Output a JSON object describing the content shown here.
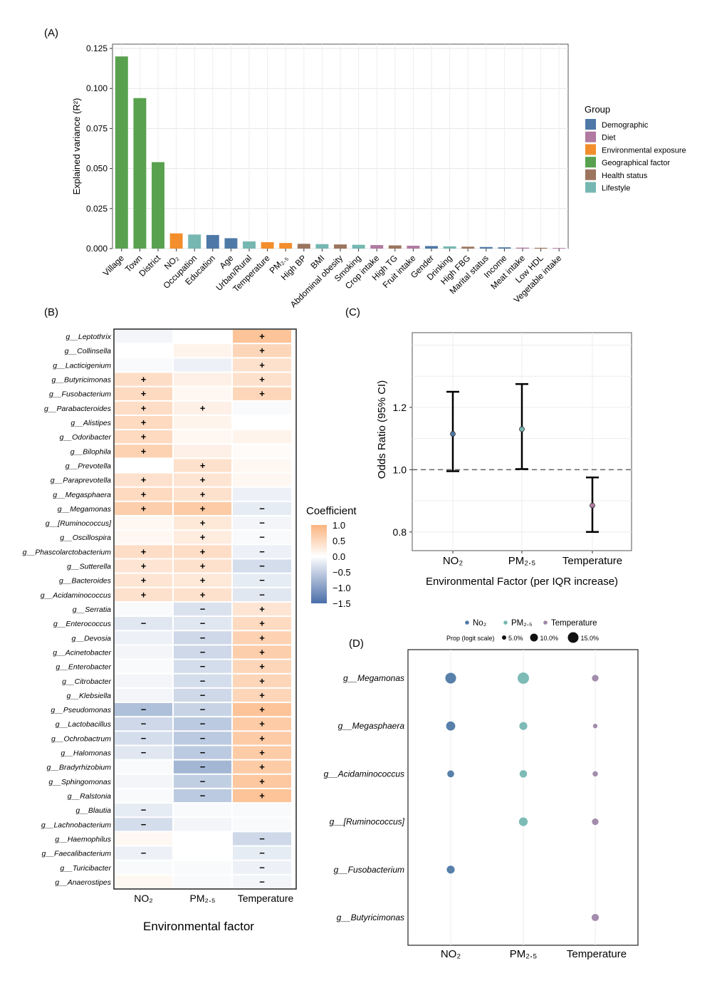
{
  "chart_data": [
    {
      "panel": "(A)",
      "type": "bar",
      "ylabel": "Explained variance (R²)",
      "ylim": [
        0,
        0.125
      ],
      "yticks": [
        "0.000",
        "0.025",
        "0.050",
        "0.075",
        "0.100",
        "0.125"
      ],
      "categories": [
        "Village",
        "Town",
        "District",
        "NO₂",
        "Occupation",
        "Education",
        "Age",
        "Urban/Rural",
        "Temperature",
        "PM₂.₅",
        "High BP",
        "BMI",
        "Abdominal obesity",
        "Smoking",
        "Crop intake",
        "High TG",
        "Fruit intake",
        "Gender",
        "Drinking",
        "High FBG",
        "Marital status",
        "Income",
        "Meat intake",
        "Low HDL",
        "Vegetable intake"
      ],
      "values": [
        0.12,
        0.094,
        0.054,
        0.0095,
        0.0088,
        0.0085,
        0.0065,
        0.0045,
        0.004,
        0.0035,
        0.003,
        0.0028,
        0.0026,
        0.0024,
        0.0022,
        0.002,
        0.0018,
        0.0016,
        0.0014,
        0.0012,
        0.001,
        0.0008,
        0.0006,
        0.0005,
        0.0004
      ],
      "groups": [
        "Geographical factor",
        "Geographical factor",
        "Geographical factor",
        "Environmental exposure",
        "Lifestyle",
        "Demographic",
        "Demographic",
        "Lifestyle",
        "Environmental exposure",
        "Environmental exposure",
        "Health status",
        "Lifestyle",
        "Health status",
        "Lifestyle",
        "Diet",
        "Health status",
        "Diet",
        "Demographic",
        "Lifestyle",
        "Health status",
        "Demographic",
        "Demographic",
        "Diet",
        "Health status",
        "Diet"
      ],
      "legend_title": "Group",
      "legend": [
        {
          "name": "Demographic",
          "color": "#4E79A7"
        },
        {
          "name": "Diet",
          "color": "#B07AA1"
        },
        {
          "name": "Environmental exposure",
          "color": "#F28E2B"
        },
        {
          "name": "Geographical factor",
          "color": "#59A14F"
        },
        {
          "name": "Health status",
          "color": "#9C755F"
        },
        {
          "name": "Lifestyle",
          "color": "#76B7B2"
        }
      ],
      "grid": true
    },
    {
      "panel": "(B)",
      "type": "heatmap",
      "xlabel": "Environmental factor",
      "columns": [
        "NO₂",
        "PM₂.₅",
        "Temperature"
      ],
      "legend_title": "Coefficient",
      "legend_ticks": [
        "1.0",
        "0.5",
        "0.0",
        "−0.5",
        "−1.0",
        "−1.5"
      ],
      "rows": [
        {
          "name": "g__Leptothrix",
          "values": [
            -0.1,
            0.0,
            0.8
          ],
          "signs": [
            "",
            "",
            "+"
          ]
        },
        {
          "name": "g__Collinsella",
          "values": [
            0.0,
            0.15,
            0.55
          ],
          "signs": [
            "",
            "",
            "+"
          ]
        },
        {
          "name": "g__Lacticigenium",
          "values": [
            -0.05,
            -0.15,
            0.4
          ],
          "signs": [
            "",
            "",
            "+"
          ]
        },
        {
          "name": "g__Butyricimonas",
          "values": [
            0.45,
            0.2,
            0.4
          ],
          "signs": [
            "+",
            "",
            "+"
          ]
        },
        {
          "name": "g__Fusobacterium",
          "values": [
            0.5,
            0.1,
            0.55
          ],
          "signs": [
            "+",
            "",
            "+"
          ]
        },
        {
          "name": "g__Parabacteroides",
          "values": [
            0.45,
            0.2,
            -0.05
          ],
          "signs": [
            "+",
            "+",
            ""
          ]
        },
        {
          "name": "g__Alistipes",
          "values": [
            0.5,
            0.15,
            0.0
          ],
          "signs": [
            "+",
            "",
            ""
          ]
        },
        {
          "name": "g__Odoribacter",
          "values": [
            0.5,
            0.1,
            0.15
          ],
          "signs": [
            "+",
            "",
            ""
          ]
        },
        {
          "name": "g__Bilophila",
          "values": [
            0.6,
            0.2,
            0.05
          ],
          "signs": [
            "+",
            "",
            ""
          ]
        },
        {
          "name": "g__Prevotella",
          "values": [
            0.0,
            0.4,
            0.1
          ],
          "signs": [
            "",
            "+",
            ""
          ]
        },
        {
          "name": "g__Paraprevotella",
          "values": [
            0.4,
            0.35,
            0.1
          ],
          "signs": [
            "+",
            "+",
            ""
          ]
        },
        {
          "name": "g__Megasphaera",
          "values": [
            0.5,
            0.4,
            -0.15
          ],
          "signs": [
            "+",
            "+",
            ""
          ]
        },
        {
          "name": "g__Megamonas",
          "values": [
            0.65,
            0.7,
            -0.2
          ],
          "signs": [
            "+",
            "+",
            "−"
          ]
        },
        {
          "name": "g__[Ruminococcus]",
          "values": [
            0.1,
            0.3,
            -0.1
          ],
          "signs": [
            "",
            "+",
            "−"
          ]
        },
        {
          "name": "g__Oscillospira",
          "values": [
            0.1,
            0.25,
            -0.05
          ],
          "signs": [
            "",
            "+",
            "−"
          ]
        },
        {
          "name": "g__Phascolarctobacterium",
          "values": [
            0.45,
            0.45,
            -0.15
          ],
          "signs": [
            "+",
            "+",
            "−"
          ]
        },
        {
          "name": "g__Sutterella",
          "values": [
            0.35,
            0.4,
            -0.35
          ],
          "signs": [
            "+",
            "+",
            "−"
          ]
        },
        {
          "name": "g__Bacteroides",
          "values": [
            0.35,
            0.3,
            -0.2
          ],
          "signs": [
            "+",
            "+",
            "−"
          ]
        },
        {
          "name": "g__Acidaminococcus",
          "values": [
            0.4,
            0.4,
            -0.25
          ],
          "signs": [
            "+",
            "+",
            "−"
          ]
        },
        {
          "name": "g__Serratia",
          "values": [
            -0.05,
            -0.3,
            0.35
          ],
          "signs": [
            "",
            "−",
            "+"
          ]
        },
        {
          "name": "g__Enterococcus",
          "values": [
            -0.25,
            -0.25,
            0.5
          ],
          "signs": [
            "−",
            "−",
            "+"
          ]
        },
        {
          "name": "g__Devosia",
          "values": [
            -0.15,
            -0.4,
            0.6
          ],
          "signs": [
            "",
            "−",
            "+"
          ]
        },
        {
          "name": "g__Acinetobacter",
          "values": [
            -0.1,
            -0.4,
            0.65
          ],
          "signs": [
            "",
            "−",
            "+"
          ]
        },
        {
          "name": "g__Enterobacter",
          "values": [
            -0.05,
            -0.35,
            0.55
          ],
          "signs": [
            "",
            "−",
            "+"
          ]
        },
        {
          "name": "g__Citrobacter",
          "values": [
            -0.1,
            -0.35,
            0.55
          ],
          "signs": [
            "",
            "−",
            "+"
          ]
        },
        {
          "name": "g__Klebsiella",
          "values": [
            -0.1,
            -0.4,
            0.55
          ],
          "signs": [
            "",
            "−",
            "+"
          ]
        },
        {
          "name": "g__Pseudomonas",
          "values": [
            -0.65,
            -0.45,
            0.8
          ],
          "signs": [
            "−",
            "−",
            "+"
          ]
        },
        {
          "name": "g__Lactobacillus",
          "values": [
            -0.4,
            -0.55,
            0.7
          ],
          "signs": [
            "−",
            "−",
            "+"
          ]
        },
        {
          "name": "g__Ochrobactrum",
          "values": [
            -0.35,
            -0.55,
            0.7
          ],
          "signs": [
            "−",
            "−",
            "+"
          ]
        },
        {
          "name": "g__Halomonas",
          "values": [
            -0.25,
            -0.55,
            0.7
          ],
          "signs": [
            "−",
            "−",
            "+"
          ]
        },
        {
          "name": "g__Bradyrhizobium",
          "values": [
            -0.05,
            -0.75,
            0.7
          ],
          "signs": [
            "",
            "−",
            "+"
          ]
        },
        {
          "name": "g__Sphingomonas",
          "values": [
            -0.1,
            -0.5,
            0.75
          ],
          "signs": [
            "",
            "−",
            "+"
          ]
        },
        {
          "name": "g__Ralstonia",
          "values": [
            -0.05,
            -0.55,
            0.8
          ],
          "signs": [
            "",
            "−",
            "+"
          ]
        },
        {
          "name": "g__Blautia",
          "values": [
            -0.2,
            -0.05,
            -0.05
          ],
          "signs": [
            "−",
            "",
            ""
          ]
        },
        {
          "name": "g__Lachnobacterium",
          "values": [
            -0.35,
            -0.1,
            -0.05
          ],
          "signs": [
            "−",
            "",
            ""
          ]
        },
        {
          "name": "g__Haemophilus",
          "values": [
            0.1,
            0.0,
            -0.4
          ],
          "signs": [
            "",
            "",
            "−"
          ]
        },
        {
          "name": "g__Faecalibacterium",
          "values": [
            -0.15,
            0.0,
            -0.2
          ],
          "signs": [
            "−",
            "",
            "−"
          ]
        },
        {
          "name": "g__Turicibacter",
          "values": [
            -0.05,
            -0.05,
            -0.15
          ],
          "signs": [
            "",
            "",
            "−"
          ]
        },
        {
          "name": "g__Anaerostipes",
          "values": [
            0.1,
            -0.05,
            -0.1
          ],
          "signs": [
            "",
            "",
            "−"
          ]
        }
      ]
    },
    {
      "panel": "(C)",
      "type": "errorbar",
      "ylabel": "Odds Ratio (95% CI)",
      "xlabel": "Environmental Factor (per IQR increase)",
      "categories": [
        "NO₂",
        "PM₂.₅",
        "Temperature"
      ],
      "values": [
        1.115,
        1.13,
        0.885
      ],
      "lower": [
        0.995,
        1.002,
        0.8
      ],
      "upper": [
        1.25,
        1.275,
        0.975
      ],
      "point_colors": [
        "#4E79A7",
        "#76B7B2",
        "#B07AA1"
      ],
      "ylim": [
        0.74,
        1.44
      ],
      "yticks": [
        "0.8",
        "1.0",
        "1.2"
      ],
      "reference_line": 1.0
    },
    {
      "panel": "(D)",
      "type": "scatter",
      "columns": [
        "NO₂",
        "PM₂.₅",
        "Temperature"
      ],
      "legend": [
        {
          "name": "No₂",
          "color": "#4E79A7"
        },
        {
          "name": "PM₂.₅",
          "color": "#76B7B2"
        },
        {
          "name": "Temperature",
          "color": "#9E86A8"
        }
      ],
      "size_legend_title": "Prop (logit scale)",
      "size_legend": [
        "5.0%",
        "10.0%",
        "15.0%"
      ],
      "rows": [
        "g__Megamonas",
        "g__Megasphaera",
        "g__Acidaminococcus",
        "g__[Ruminococcus]",
        "g__Fusobacterium",
        "g__Butyricimonas"
      ],
      "points": [
        {
          "row": "g__Megamonas",
          "col": "NO₂",
          "prop": 0.13
        },
        {
          "row": "g__Megamonas",
          "col": "PM₂.₅",
          "prop": 0.15
        },
        {
          "row": "g__Megamonas",
          "col": "Temperature",
          "prop": 0.035
        },
        {
          "row": "g__Megasphaera",
          "col": "NO₂",
          "prop": 0.085
        },
        {
          "row": "g__Megasphaera",
          "col": "PM₂.₅",
          "prop": 0.06
        },
        {
          "row": "g__Megasphaera",
          "col": "Temperature",
          "prop": 0.01
        },
        {
          "row": "g__Acidaminococcus",
          "col": "NO₂",
          "prop": 0.04
        },
        {
          "row": "g__Acidaminococcus",
          "col": "PM₂.₅",
          "prop": 0.05
        },
        {
          "row": "g__Acidaminococcus",
          "col": "Temperature",
          "prop": 0.018
        },
        {
          "row": "g__[Ruminococcus]",
          "col": "PM₂.₅",
          "prop": 0.075
        },
        {
          "row": "g__[Ruminococcus]",
          "col": "Temperature",
          "prop": 0.035
        },
        {
          "row": "g__Fusobacterium",
          "col": "NO₂",
          "prop": 0.06
        },
        {
          "row": "g__Butyricimonas",
          "col": "Temperature",
          "prop": 0.045
        }
      ]
    }
  ]
}
